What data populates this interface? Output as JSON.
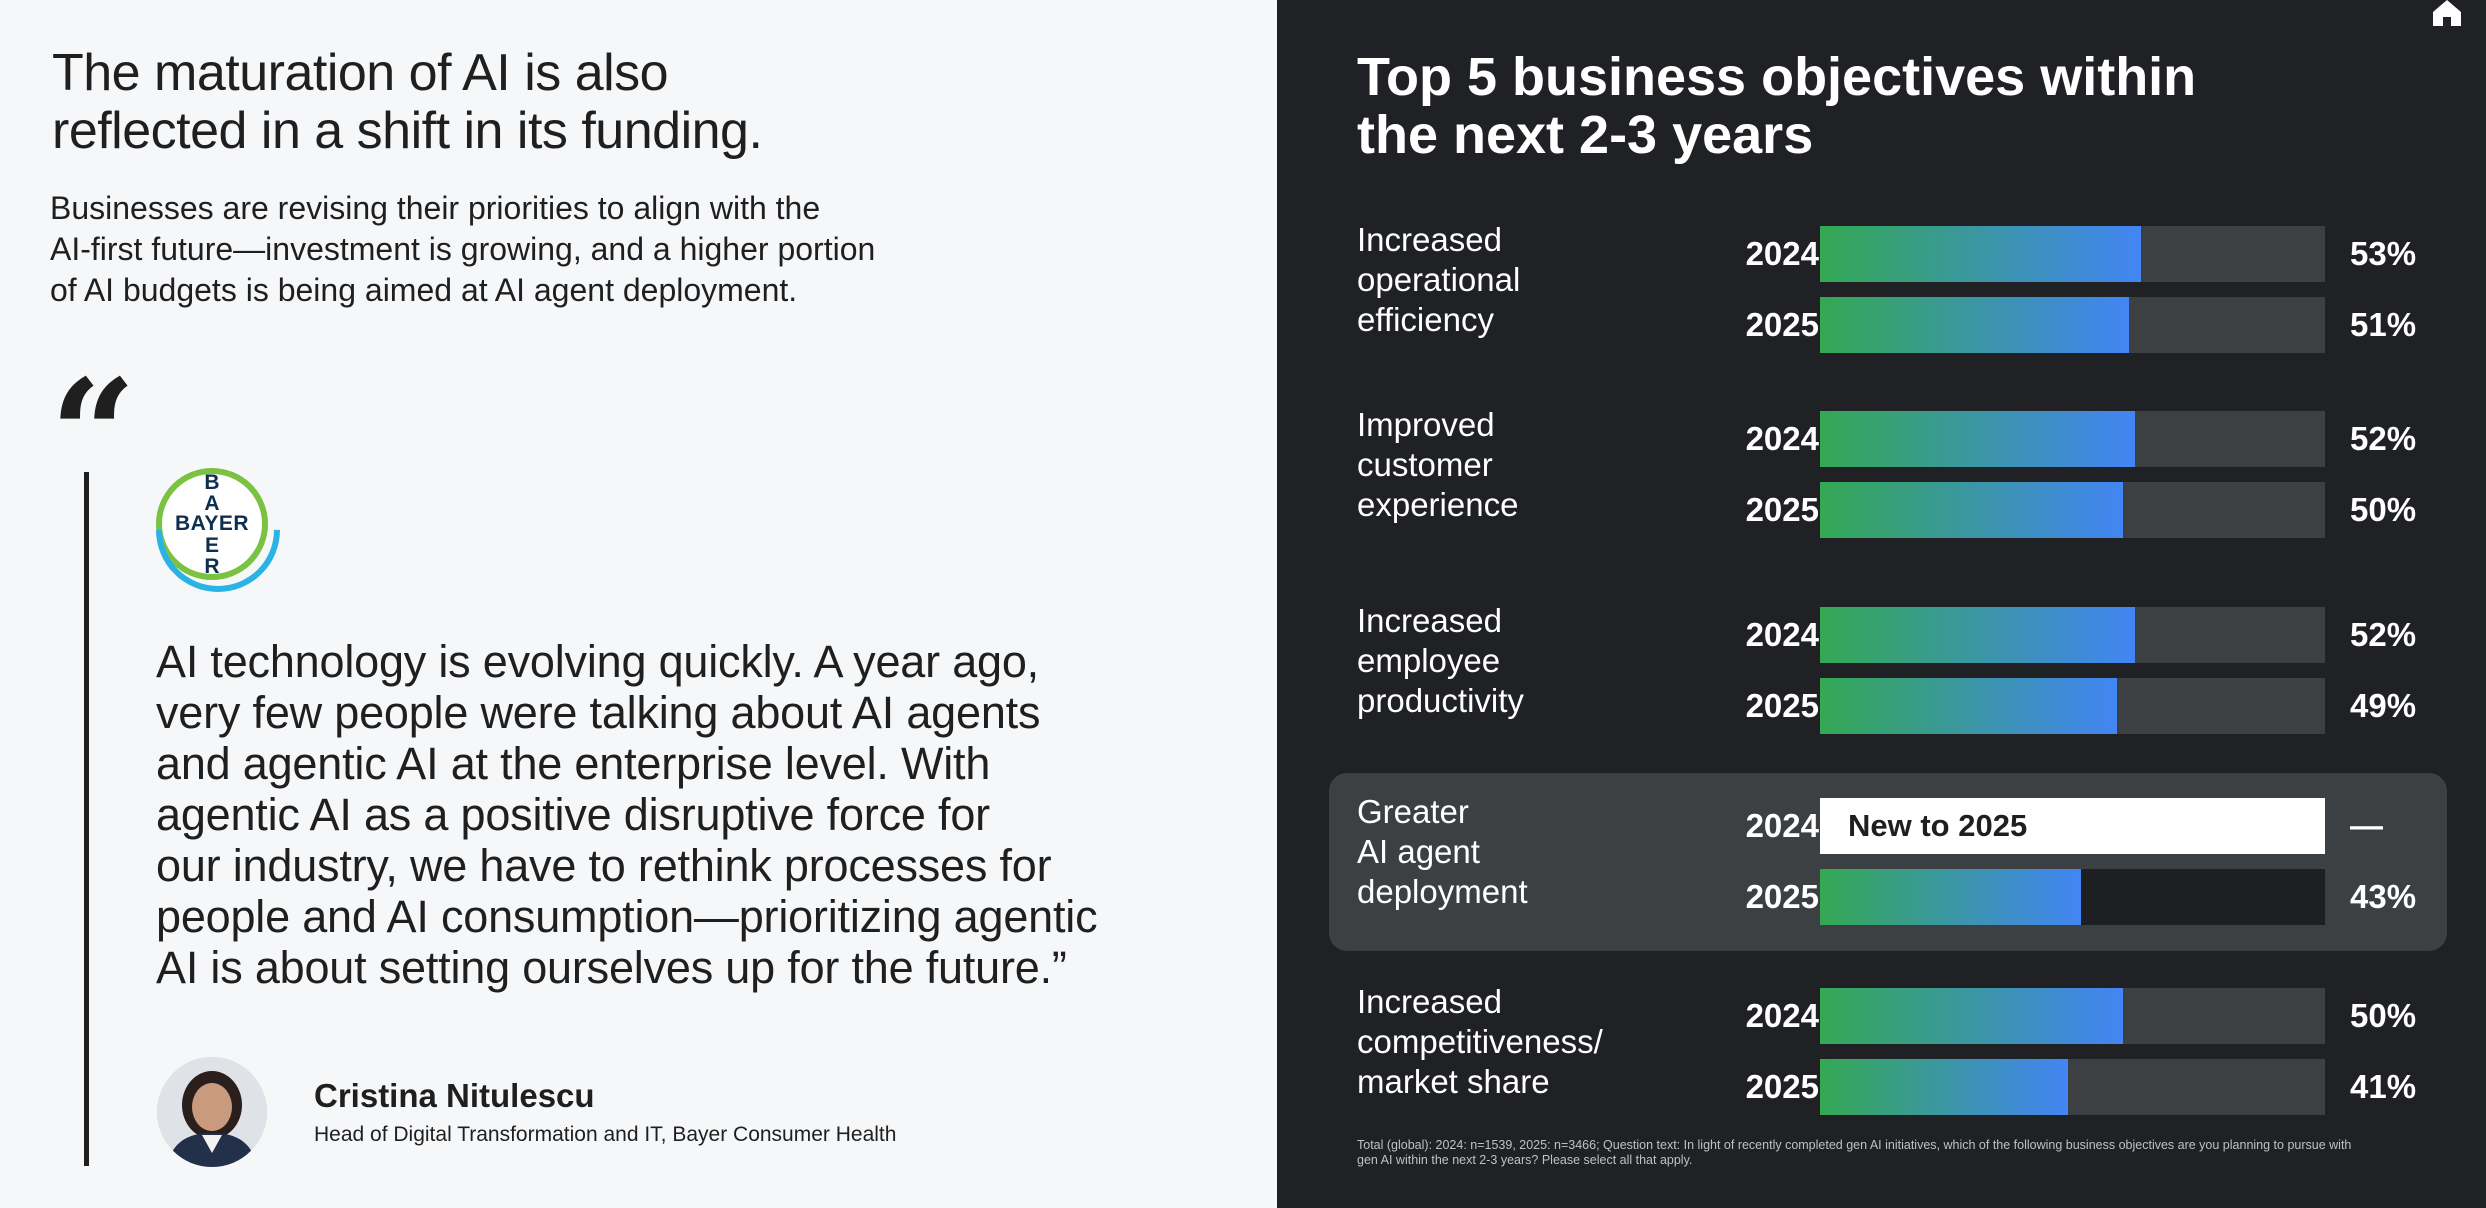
{
  "left": {
    "headline_line1": "The maturation of AI is also",
    "headline_line2": "reflected in a shift in its funding.",
    "intro_line1": "Businesses are revising their priorities to align with the",
    "intro_line2": "AI-first future—investment is growing, and a higher portion",
    "intro_line3": "of AI budgets is being aimed at AI agent deployment.",
    "quote_mark": "“",
    "logo_text": "BAYER",
    "quote_lines": [
      "AI technology is evolving quickly. A year ago,",
      "very few people were talking about AI agents",
      "and agentic AI at the enterprise level. With",
      "agentic AI as a positive disruptive force for",
      "our industry, we have to rethink processes for",
      "people and AI consumption—prioritizing agentic",
      "AI is about setting ourselves up for the future.”"
    ],
    "person_name": "Cristina Nitulescu",
    "person_title": "Head of Digital Transformation and IT, Bayer Consumer Health"
  },
  "chart_data": {
    "type": "bar",
    "title_line1": "Top 5 business objectives within",
    "title_line2": "the next 2-3 years",
    "unit": "%",
    "xlim": [
      0,
      100
    ],
    "series_colors": {
      "fill_start": "#34a853",
      "fill_end": "#4285f4",
      "track": "#3c4043",
      "highlight_bg": "#3c4043"
    },
    "categories": [
      {
        "label_lines": [
          "Increased",
          "operational",
          "efficiency"
        ],
        "rows": [
          {
            "year": "2024",
            "value": 53,
            "label": "53%"
          },
          {
            "year": "2025",
            "value": 51,
            "label": "51%"
          }
        ]
      },
      {
        "label_lines": [
          "Improved",
          "customer",
          "experience"
        ],
        "rows": [
          {
            "year": "2024",
            "value": 52,
            "label": "52%"
          },
          {
            "year": "2025",
            "value": 50,
            "label": "50%"
          }
        ]
      },
      {
        "label_lines": [
          "Increased",
          "employee",
          "productivity"
        ],
        "rows": [
          {
            "year": "2024",
            "value": 52,
            "label": "52%"
          },
          {
            "year": "2025",
            "value": 49,
            "label": "49%"
          }
        ]
      },
      {
        "label_lines": [
          "Greater",
          "AI agent",
          "deployment"
        ],
        "highlight": true,
        "rows": [
          {
            "year": "2024",
            "value": null,
            "label": "—",
            "note": "New to 2025"
          },
          {
            "year": "2025",
            "value": 43,
            "label": "43%"
          }
        ]
      },
      {
        "label_lines": [
          "Increased",
          "competitiveness/",
          "market share"
        ],
        "rows": [
          {
            "year": "2024",
            "value": 50,
            "label": "50%"
          },
          {
            "year": "2025",
            "value": 41,
            "label": "41%"
          }
        ]
      }
    ],
    "footnote_line1": "Total (global): 2024: n=1539, 2025: n=3466; Question text: In light of recently completed gen AI initiatives, which of the following business objectives are you planning to pursue with",
    "footnote_line2": "gen AI within the next 2-3 years? Please select all that apply."
  }
}
